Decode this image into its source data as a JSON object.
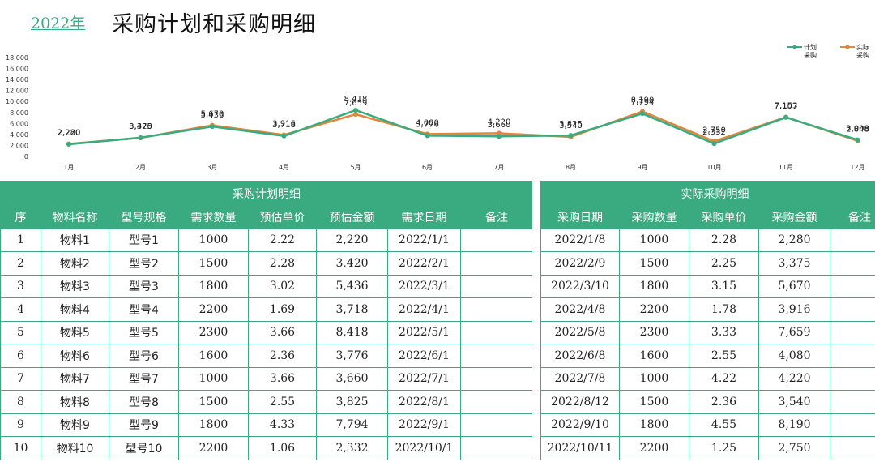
{
  "header": {
    "year": "2022年",
    "title": "采购计划和采购明细"
  },
  "chart_data": {
    "type": "line",
    "categories": [
      "1月",
      "2月",
      "3月",
      "4月",
      "5月",
      "6月",
      "7月",
      "8月",
      "9月",
      "10月",
      "11月",
      "12月"
    ],
    "y_ticks": [
      "0",
      "2,000",
      "4,000",
      "6,000",
      "8,000",
      "10,000",
      "12,000",
      "14,000",
      "16,000",
      "18,000"
    ],
    "ylim": [
      0,
      18000
    ],
    "legend_position": "top-right",
    "series": [
      {
        "name": "计划采购",
        "legend_line1": "计划",
        "legend_line2": "采购",
        "color": "#3aaa80",
        "values": [
          2220,
          3420,
          5436,
          3718,
          8418,
          3776,
          3660,
          3825,
          7794,
          2332,
          7107,
          3008
        ],
        "labels": [
          "2,220",
          "3,420",
          "5,436",
          "3,718",
          "8,418",
          "3,776",
          "3,660",
          "3,825",
          "7,794",
          "2,332",
          "7,107",
          "3,008"
        ]
      },
      {
        "name": "实际采购",
        "legend_line1": "实际",
        "legend_line2": "采购",
        "color": "#e0873a",
        "values": [
          2280,
          3375,
          5670,
          3916,
          7659,
          4080,
          4220,
          3540,
          8190,
          2750,
          7153,
          2848
        ],
        "labels": [
          "2,280",
          "3,375",
          "5,670",
          "3,916",
          "7,659",
          "4,080",
          "4,220",
          "3,540",
          "8,190",
          "2,750",
          "7,153",
          "2,848"
        ]
      }
    ]
  },
  "plan": {
    "group_title": "采购计划明细",
    "headers": [
      "序",
      "物料名称",
      "型号规格",
      "需求数量",
      "预估单价",
      "预估金额",
      "需求日期",
      "备注"
    ],
    "rows": [
      [
        "1",
        "物料1",
        "型号1",
        "1000",
        "2.22",
        "2,220",
        "2022/1/1",
        ""
      ],
      [
        "2",
        "物料2",
        "型号2",
        "1500",
        "2.28",
        "3,420",
        "2022/2/1",
        ""
      ],
      [
        "3",
        "物料3",
        "型号3",
        "1800",
        "3.02",
        "5,436",
        "2022/3/1",
        ""
      ],
      [
        "4",
        "物料4",
        "型号4",
        "2200",
        "1.69",
        "3,718",
        "2022/4/1",
        ""
      ],
      [
        "5",
        "物料5",
        "型号5",
        "2300",
        "3.66",
        "8,418",
        "2022/5/1",
        ""
      ],
      [
        "6",
        "物料6",
        "型号6",
        "1600",
        "2.36",
        "3,776",
        "2022/6/1",
        ""
      ],
      [
        "7",
        "物料7",
        "型号7",
        "1000",
        "3.66",
        "3,660",
        "2022/7/1",
        ""
      ],
      [
        "8",
        "物料8",
        "型号8",
        "1500",
        "2.55",
        "3,825",
        "2022/8/1",
        ""
      ],
      [
        "9",
        "物料9",
        "型号9",
        "1800",
        "4.33",
        "7,794",
        "2022/9/1",
        ""
      ],
      [
        "10",
        "物料10",
        "型号10",
        "2200",
        "1.06",
        "2,332",
        "2022/10/1",
        ""
      ]
    ]
  },
  "actual": {
    "group_title": "实际采购明细",
    "headers": [
      "采购日期",
      "采购数量",
      "采购单价",
      "采购金额",
      "备注"
    ],
    "rows": [
      [
        "2022/1/8",
        "1000",
        "2.28",
        "2,280",
        ""
      ],
      [
        "2022/2/9",
        "1500",
        "2.25",
        "3,375",
        ""
      ],
      [
        "2022/3/10",
        "1800",
        "3.15",
        "5,670",
        ""
      ],
      [
        "2022/4/8",
        "2200",
        "1.78",
        "3,916",
        ""
      ],
      [
        "2022/5/8",
        "2300",
        "3.33",
        "7,659",
        ""
      ],
      [
        "2022/6/8",
        "1600",
        "2.55",
        "4,080",
        ""
      ],
      [
        "2022/7/8",
        "1000",
        "4.22",
        "4,220",
        ""
      ],
      [
        "2022/8/12",
        "1500",
        "2.36",
        "3,540",
        ""
      ],
      [
        "2022/9/10",
        "1800",
        "4.55",
        "8,190",
        ""
      ],
      [
        "2022/10/11",
        "2200",
        "1.25",
        "2,750",
        ""
      ]
    ]
  }
}
